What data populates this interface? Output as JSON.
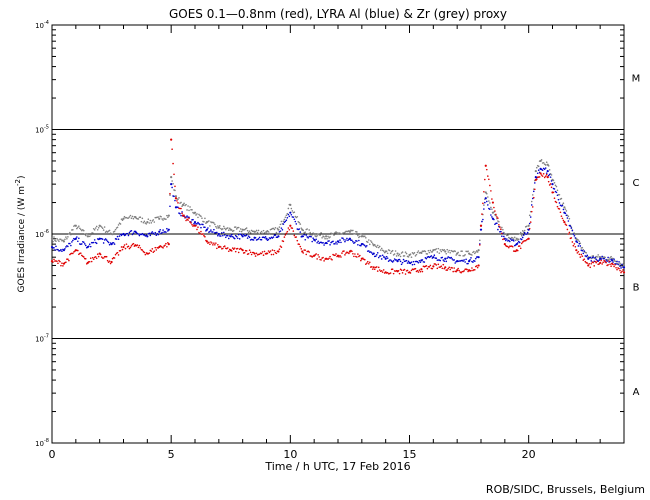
{
  "chart_data": {
    "type": "scatter",
    "title": "GOES 0.1—0.8nm (red), LYRA Al (blue) & Zr (grey) proxy",
    "xlabel": "Time / h UTC, 17 Feb 2016",
    "ylabel": "GOES Irradiance / (W m",
    "ylabel_exp": "-2",
    "ylabel_close": ")",
    "credit": "ROB/SIDC, Brussels, Belgium",
    "xlim": [
      0,
      24
    ],
    "ylim": [
      1e-08,
      0.0001
    ],
    "yscale": "log",
    "x_ticks": [
      "0",
      "5",
      "10",
      "15",
      "20"
    ],
    "y_ticks": [
      {
        "base": "10",
        "exp": "-8"
      },
      {
        "base": "10",
        "exp": "-7"
      },
      {
        "base": "10",
        "exp": "-6"
      },
      {
        "base": "10",
        "exp": "-5"
      },
      {
        "base": "10",
        "exp": "-4"
      }
    ],
    "flare_classes": [
      "A",
      "B",
      "C",
      "M"
    ],
    "colors": {
      "goes": "#e00000",
      "al": "#0000cc",
      "zr": "#808080"
    },
    "series": [
      {
        "name": "GOES 0.1—0.8nm",
        "color": "#e00000",
        "x": [
          0,
          0.5,
          1,
          1.5,
          2,
          2.5,
          3,
          3.5,
          4,
          4.5,
          4.9,
          5,
          5.2,
          5.5,
          6,
          6.5,
          7,
          7.5,
          8,
          8.5,
          9,
          9.5,
          10,
          10.5,
          11,
          11.5,
          12,
          12.5,
          13,
          13.5,
          14,
          14.5,
          15,
          15.5,
          16,
          16.5,
          17,
          17.5,
          17.9,
          18,
          18.2,
          18.5,
          19,
          19.5,
          20,
          20.3,
          20.5,
          20.8,
          21,
          21.5,
          22,
          22.5,
          23,
          23.5,
          24
        ],
        "y": [
          5.5e-07,
          5.2e-07,
          7e-07,
          5.3e-07,
          6.5e-07,
          5.4e-07,
          7.5e-07,
          7.8e-07,
          6.5e-07,
          7.5e-07,
          8e-07,
          8e-06,
          2.2e-06,
          1.5e-06,
          1.2e-06,
          8.5e-07,
          7.5e-07,
          7e-07,
          7e-07,
          6.5e-07,
          6.5e-07,
          6.8e-07,
          1.2e-06,
          6.8e-07,
          6.2e-07,
          5.8e-07,
          6.2e-07,
          6.8e-07,
          5.8e-07,
          4.8e-07,
          4.3e-07,
          4.4e-07,
          4.3e-07,
          4.6e-07,
          4.9e-07,
          4.8e-07,
          4.5e-07,
          4.5e-07,
          5e-07,
          1.2e-06,
          4.5e-06,
          2e-06,
          8e-07,
          7e-07,
          9e-07,
          3.3e-06,
          3.8e-06,
          3.5e-06,
          2.5e-06,
          1.3e-06,
          7e-07,
          5e-07,
          5.3e-07,
          5.2e-07,
          4.3e-07
        ]
      },
      {
        "name": "LYRA Al",
        "color": "#0000cc",
        "x": [
          0,
          0.5,
          1,
          1.5,
          2,
          2.5,
          3,
          3.5,
          4,
          4.5,
          4.9,
          5,
          5.2,
          5.5,
          6,
          6.5,
          7,
          7.5,
          8,
          8.5,
          9,
          9.5,
          10,
          10.5,
          11,
          11.5,
          12,
          12.5,
          13,
          13.5,
          14,
          14.5,
          15,
          15.5,
          16,
          16.5,
          17,
          17.5,
          17.9,
          18,
          18.2,
          18.5,
          19,
          19.5,
          20,
          20.3,
          20.5,
          20.8,
          21,
          21.5,
          22,
          22.5,
          23,
          23.5,
          24
        ],
        "y": [
          7.5e-07,
          7e-07,
          9e-07,
          7.5e-07,
          9e-07,
          8e-07,
          1e-06,
          1.05e-06,
          9.5e-07,
          1.05e-06,
          1.1e-06,
          3e-06,
          1.8e-06,
          1.5e-06,
          1.3e-06,
          1.1e-06,
          1e-06,
          9.5e-07,
          9.5e-07,
          9.2e-07,
          9e-07,
          9.5e-07,
          1.6e-06,
          9.5e-07,
          8.8e-07,
          8.2e-07,
          8.5e-07,
          9e-07,
          8e-07,
          6.5e-07,
          5.8e-07,
          5.5e-07,
          5.3e-07,
          5.6e-07,
          6e-07,
          5.8e-07,
          5.5e-07,
          5.5e-07,
          6e-07,
          1.1e-06,
          2.2e-06,
          1.4e-06,
          9e-07,
          8e-07,
          1.1e-06,
          3.5e-06,
          4.2e-06,
          4e-06,
          3e-06,
          1.6e-06,
          8.5e-07,
          5.8e-07,
          5.8e-07,
          5.6e-07,
          4.8e-07
        ]
      },
      {
        "name": "Zr proxy",
        "color": "#808080",
        "x": [
          0,
          0.5,
          1,
          1.5,
          2,
          2.5,
          3,
          3.5,
          4,
          4.5,
          4.9,
          5,
          5.2,
          5.5,
          6,
          6.5,
          7,
          7.5,
          8,
          8.5,
          9,
          9.5,
          10,
          10.5,
          11,
          11.5,
          12,
          12.5,
          13,
          13.5,
          14,
          14.5,
          15,
          15.5,
          16,
          16.5,
          17,
          17.5,
          17.9,
          18,
          18.2,
          18.5,
          19,
          19.5,
          20,
          20.3,
          20.5,
          20.8,
          21,
          21.5,
          22,
          22.5,
          23,
          23.5,
          24
        ],
        "y": [
          9e-07,
          8.5e-07,
          1.2e-06,
          9.5e-07,
          1.2e-06,
          1e-06,
          1.4e-06,
          1.45e-06,
          1.3e-06,
          1.4e-06,
          1.5e-06,
          3.5e-06,
          2.3e-06,
          1.9e-06,
          1.6e-06,
          1.3e-06,
          1.15e-06,
          1.1e-06,
          1.1e-06,
          1.05e-06,
          1.05e-06,
          1.1e-06,
          1.9e-06,
          1.1e-06,
          1e-06,
          9.5e-07,
          1e-06,
          1.05e-06,
          9.5e-07,
          7.8e-07,
          6.8e-07,
          6.5e-07,
          6.3e-07,
          6.6e-07,
          7e-07,
          6.8e-07,
          6.5e-07,
          6.5e-07,
          7e-07,
          1.2e-06,
          2.5e-06,
          1.6e-06,
          1e-06,
          9e-07,
          1.2e-06,
          4e-06,
          5e-06,
          4.6e-06,
          3.3e-06,
          1.8e-06,
          9e-07,
          6e-07,
          6e-07,
          5.8e-07,
          5e-07
        ]
      }
    ]
  }
}
